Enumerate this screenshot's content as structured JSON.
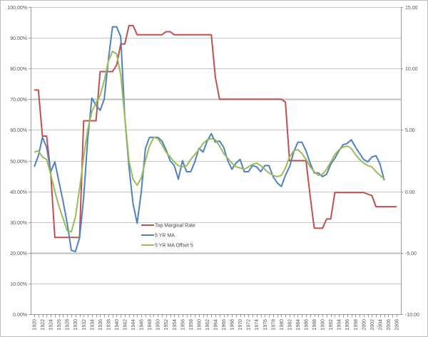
{
  "chart_data": {
    "type": "line",
    "title": "",
    "xlabel": "",
    "ylabel": "",
    "y2label": "",
    "ylim": [
      0,
      100
    ],
    "y2lim": [
      -10,
      15
    ],
    "grid": true,
    "legend_position": "inside-center-bottom",
    "left_axis_ticks": [
      "0.00%",
      "10.00%",
      "20.00%",
      "30.00%",
      "40.00%",
      "50.00%",
      "60.00%",
      "70.00%",
      "80.00%",
      "90.00%",
      "100.00%"
    ],
    "right_axis_ticks": [
      "-10.00",
      "-5.00",
      "0.00",
      "5.00",
      "10.00",
      "15.00"
    ],
    "x_tick_labels": [
      "1920",
      "1922",
      "1924",
      "1926",
      "1928",
      "1930",
      "1932",
      "1934",
      "1936",
      "1938",
      "1940",
      "1942",
      "1944",
      "1946",
      "1948",
      "1950",
      "1952",
      "1954",
      "1956",
      "1958",
      "1960",
      "1962",
      "1964",
      "1966",
      "1968",
      "1970",
      "1972",
      "1974",
      "1976",
      "1978",
      "1980",
      "1982",
      "1984",
      "1986",
      "1988",
      "1990",
      "1992",
      "1994",
      "1996",
      "1998",
      "2000",
      "2002",
      "2004",
      "2006",
      "2008"
    ],
    "series": [
      {
        "name": "Top Marginal Rate",
        "axis": "left",
        "color": "#C0504D",
        "x": [
          1920,
          1921,
          1922,
          1923,
          1924,
          1925,
          1926,
          1927,
          1928,
          1929,
          1930,
          1931,
          1932,
          1933,
          1934,
          1935,
          1936,
          1937,
          1938,
          1939,
          1940,
          1941,
          1942,
          1943,
          1944,
          1945,
          1946,
          1947,
          1948,
          1949,
          1950,
          1951,
          1952,
          1953,
          1954,
          1955,
          1956,
          1957,
          1958,
          1959,
          1960,
          1961,
          1962,
          1963,
          1964,
          1965,
          1966,
          1967,
          1968,
          1969,
          1970,
          1971,
          1972,
          1973,
          1974,
          1975,
          1976,
          1977,
          1978,
          1979,
          1980,
          1981,
          1982,
          1983,
          1984,
          1985,
          1986,
          1987,
          1988,
          1989,
          1990,
          1991,
          1992,
          1993,
          1994,
          1995,
          1996,
          1997,
          1998,
          1999,
          2000,
          2001,
          2002,
          2003,
          2004,
          2005,
          2006,
          2007,
          2008
        ],
        "values": [
          73,
          73,
          58,
          58,
          46,
          25,
          25,
          25,
          25,
          25,
          25,
          25,
          63,
          63,
          63,
          63,
          79,
          79,
          79,
          79,
          81.1,
          88,
          88,
          94,
          94,
          91,
          91,
          91,
          91,
          91,
          91,
          91,
          92,
          92,
          91,
          91,
          91,
          91,
          91,
          91,
          91,
          91,
          91,
          91,
          77,
          70,
          70,
          70,
          70,
          70,
          70,
          70,
          70,
          70,
          70,
          70,
          70,
          70,
          70,
          70,
          70,
          69.1,
          50,
          50,
          50,
          50,
          50,
          38.5,
          28,
          28,
          28,
          31,
          31,
          39.6,
          39.6,
          39.6,
          39.6,
          39.6,
          39.6,
          39.6,
          39.6,
          39.1,
          38.6,
          35,
          35,
          35,
          35,
          35,
          35
        ]
      },
      {
        "name": "5 YR MA",
        "axis": "right",
        "color": "#4F81BD",
        "x": [
          1920,
          1921,
          1922,
          1923,
          1924,
          1925,
          1926,
          1927,
          1928,
          1929,
          1930,
          1931,
          1932,
          1933,
          1934,
          1935,
          1936,
          1937,
          1938,
          1939,
          1940,
          1941,
          1942,
          1943,
          1944,
          1945,
          1946,
          1947,
          1948,
          1949,
          1950,
          1951,
          1952,
          1953,
          1954,
          1955,
          1956,
          1957,
          1958,
          1959,
          1960,
          1961,
          1962,
          1963,
          1964,
          1965,
          1966,
          1967,
          1968,
          1969,
          1970,
          1971,
          1972,
          1973,
          1974,
          1975,
          1976,
          1977,
          1978,
          1979,
          1980,
          1981,
          1982,
          1983,
          1984,
          1985,
          1986,
          1987,
          1988,
          1989,
          1990,
          1991,
          1992,
          1993,
          1994,
          1995,
          1996,
          1997,
          1998,
          1999,
          2000,
          2001,
          2002,
          2003,
          2004,
          2005
        ],
        "values": [
          2.0,
          2.9,
          4.4,
          3.6,
          1.6,
          2.4,
          0.8,
          -0.8,
          -2.6,
          -4.8,
          -4.9,
          -3.8,
          -0.5,
          4.3,
          7.6,
          7.0,
          6.6,
          7.5,
          10.7,
          13.4,
          13.4,
          12.6,
          6.0,
          2.0,
          -1.0,
          -2.6,
          0,
          3.5,
          4.4,
          4.4,
          4.4,
          4.1,
          3.4,
          2.5,
          2.1,
          1.0,
          2.5,
          1.6,
          1.6,
          2.4,
          3.5,
          3.2,
          4.1,
          4.7,
          4.0,
          4.1,
          3.6,
          2.5,
          1.8,
          2.3,
          2.6,
          1.6,
          1.6,
          2.1,
          2.0,
          1.6,
          2.1,
          2.1,
          1.2,
          0.7,
          0.4,
          1.3,
          2.0,
          3.2,
          4.0,
          4.0,
          3.3,
          2.3,
          1.5,
          1.5,
          1.2,
          1.4,
          2.2,
          2.7,
          3.3,
          3.8,
          3.9,
          4.2,
          3.6,
          3.1,
          2.6,
          2.4,
          2.8,
          2.9,
          2.2,
          0.9
        ]
      },
      {
        "name": "5 YR MA Offset 5",
        "axis": "right",
        "color": "#9BBB59",
        "x": [
          1920,
          1921,
          1922,
          1923,
          1924,
          1925,
          1926,
          1927,
          1928,
          1929,
          1930,
          1931,
          1932,
          1933,
          1934,
          1935,
          1936,
          1937,
          1938,
          1939,
          1940,
          1941,
          1942,
          1943,
          1944,
          1945,
          1946,
          1947,
          1948,
          1949,
          1950,
          1951,
          1952,
          1953,
          1954,
          1955,
          1956,
          1957,
          1958,
          1959,
          1960,
          1961,
          1962,
          1963,
          1964,
          1965,
          1966,
          1967,
          1968,
          1969,
          1970,
          1971,
          1972,
          1973,
          1974,
          1975,
          1976,
          1977,
          1978,
          1979,
          1980,
          1981,
          1982,
          1983,
          1984,
          1985,
          1986,
          1987,
          1988,
          1989,
          1990,
          1991,
          1992,
          1993,
          1994,
          1995,
          1996,
          1997,
          1998,
          1999,
          2000,
          2001,
          2002,
          2003,
          2004,
          2005
        ],
        "values": [
          3.2,
          3.3,
          2.8,
          2.6,
          1.4,
          0.0,
          -1.2,
          -2.2,
          -3.2,
          -3.3,
          -2.1,
          0.2,
          2.8,
          5.0,
          6.5,
          7.2,
          7.8,
          9.0,
          10.6,
          11.4,
          11.2,
          9.5,
          6.0,
          2.5,
          1.0,
          0.5,
          1.1,
          2.5,
          3.7,
          4.4,
          4.3,
          3.8,
          3.2,
          2.8,
          2.4,
          2.1,
          2.0,
          2.1,
          2.6,
          3.0,
          3.4,
          3.9,
          4.2,
          4.3,
          4.2,
          3.7,
          3.1,
          2.7,
          2.3,
          2.0,
          1.9,
          1.8,
          2.0,
          2.2,
          2.3,
          2.1,
          1.8,
          1.5,
          1.3,
          1.2,
          1.3,
          1.9,
          2.8,
          3.3,
          3.4,
          3.1,
          2.6,
          2.0,
          1.6,
          1.3,
          1.4,
          1.8,
          2.4,
          3.0,
          3.4,
          3.6,
          3.7,
          3.5,
          3.0,
          2.6,
          2.3,
          2.1,
          2.0,
          1.6,
          1.3,
          1.0
        ]
      }
    ]
  },
  "legend": {
    "items": [
      {
        "label": "Top Marginal Rate",
        "color": "#C0504D"
      },
      {
        "label": "5 YR MA",
        "color": "#4F81BD"
      },
      {
        "label": "5 YR MA Offset 5",
        "color": "#9BBB59"
      }
    ]
  }
}
